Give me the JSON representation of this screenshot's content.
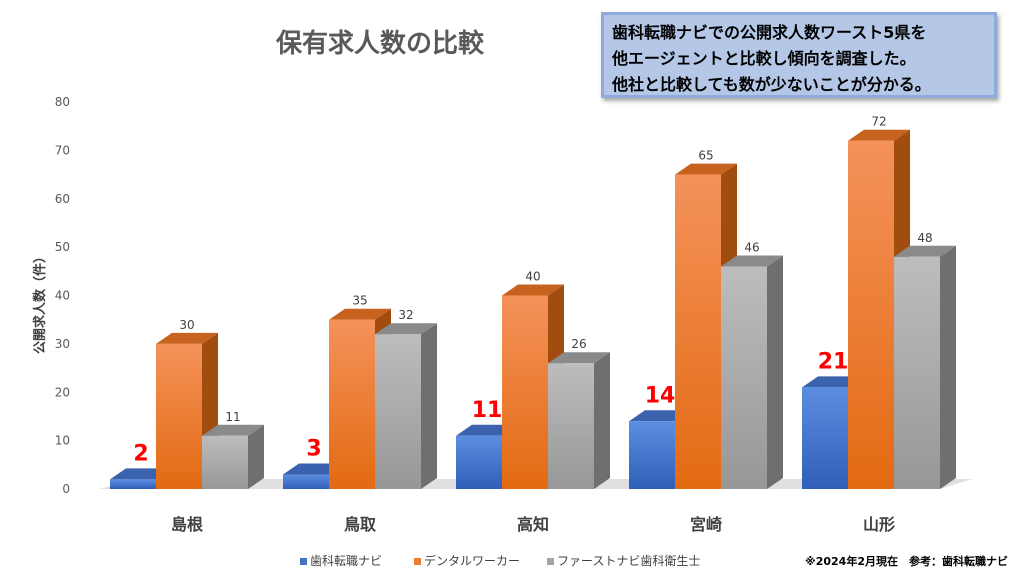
{
  "chart_data": {
    "type": "bar",
    "title": "保有求人数の比較",
    "ylabel": "公開求人数（件）",
    "ylim": [
      0,
      80
    ],
    "yticks": [
      0,
      10,
      20,
      30,
      40,
      50,
      60,
      70,
      80
    ],
    "categories": [
      "島根",
      "鳥取",
      "高知",
      "宮崎",
      "山形"
    ],
    "series": [
      {
        "name": "歯科転職ナビ",
        "values": [
          2,
          3,
          11,
          14,
          21
        ],
        "color": "#4472c4",
        "label_style": "big-red"
      },
      {
        "name": "デンタルワーカー",
        "values": [
          30,
          35,
          40,
          65,
          72
        ],
        "color": "#ed7d31",
        "label_style": "small"
      },
      {
        "name": "ファーストナビ歯科衛生士",
        "values": [
          11,
          32,
          26,
          46,
          48
        ],
        "color": "#a5a5a5",
        "label_style": "small"
      }
    ],
    "legend_position": "bottom",
    "grid": false,
    "style": "3d-columns"
  },
  "note": {
    "lines": [
      "歯科転職ナビでの公開求人数ワースト5県を",
      "他エージェントと比較し傾向を調査した。",
      "他社と比較しても数が少ないことが分かる。"
    ]
  },
  "source_note": "※2024年2月現在　参考：歯科転職ナビ",
  "colors": {
    "blue": "#4472c4",
    "orange": "#ed7d31",
    "gray": "#a5a5a5",
    "highlight_label": "#ff0000"
  }
}
